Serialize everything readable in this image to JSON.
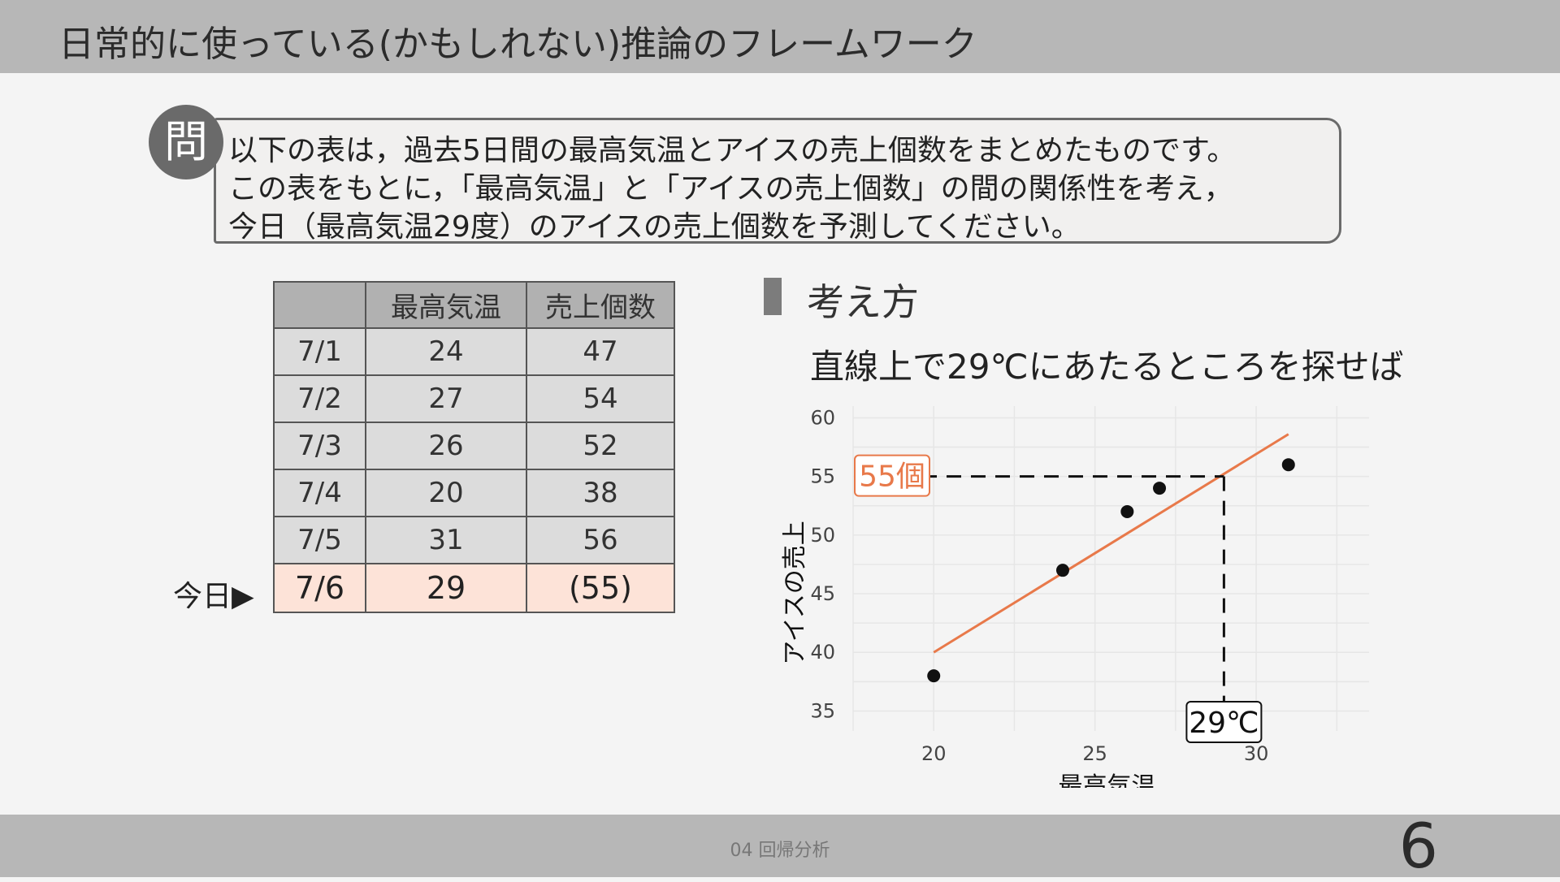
{
  "header": {
    "title": "日常的に使っている(かもしれない)推論のフレームワーク"
  },
  "question": {
    "badge": "問",
    "lines": [
      "以下の表は，過去5日間の最高気温とアイスの売上個数をまとめたものです。",
      "この表をもとに，「最高気温」と「アイスの売上個数」の間の関係性を考え，",
      "今日（最高気温29度）のアイスの売上個数を予測してください。"
    ]
  },
  "table": {
    "headers": [
      "",
      "最高気温",
      "売上個数"
    ],
    "rows": [
      [
        "7/1",
        "24",
        "47"
      ],
      [
        "7/2",
        "27",
        "54"
      ],
      [
        "7/3",
        "26",
        "52"
      ],
      [
        "7/4",
        "20",
        "38"
      ],
      [
        "7/5",
        "31",
        "56"
      ]
    ],
    "today_row": [
      "7/6",
      "29",
      "(55)"
    ],
    "today_label": "今日"
  },
  "section": {
    "title": "考え方",
    "subtitle": "直線上で29℃にあたるところを探せば"
  },
  "chart_data": {
    "type": "scatter",
    "x": [
      24,
      27,
      26,
      20,
      31
    ],
    "y": [
      47,
      54,
      52,
      38,
      56
    ],
    "xlabel": "最高気温",
    "ylabel": "アイスの売上",
    "xlim": [
      17.5,
      33.5
    ],
    "ylim": [
      33.3,
      61
    ],
    "xticks": [
      20,
      25,
      30
    ],
    "yticks": [
      35,
      40,
      45,
      50,
      55,
      60
    ],
    "trend_line": {
      "x": [
        20,
        31
      ],
      "y": [
        40,
        58.6
      ]
    },
    "annotations": {
      "x_value": 29,
      "x_label": "29℃",
      "y_value": 55,
      "y_label": "55個"
    },
    "grid": true,
    "colors": {
      "points": "#111111",
      "trend": "#e8794a",
      "y_annotation": "#e8794a"
    }
  },
  "footer": {
    "label": "04 回帰分析",
    "page_number": "6"
  }
}
